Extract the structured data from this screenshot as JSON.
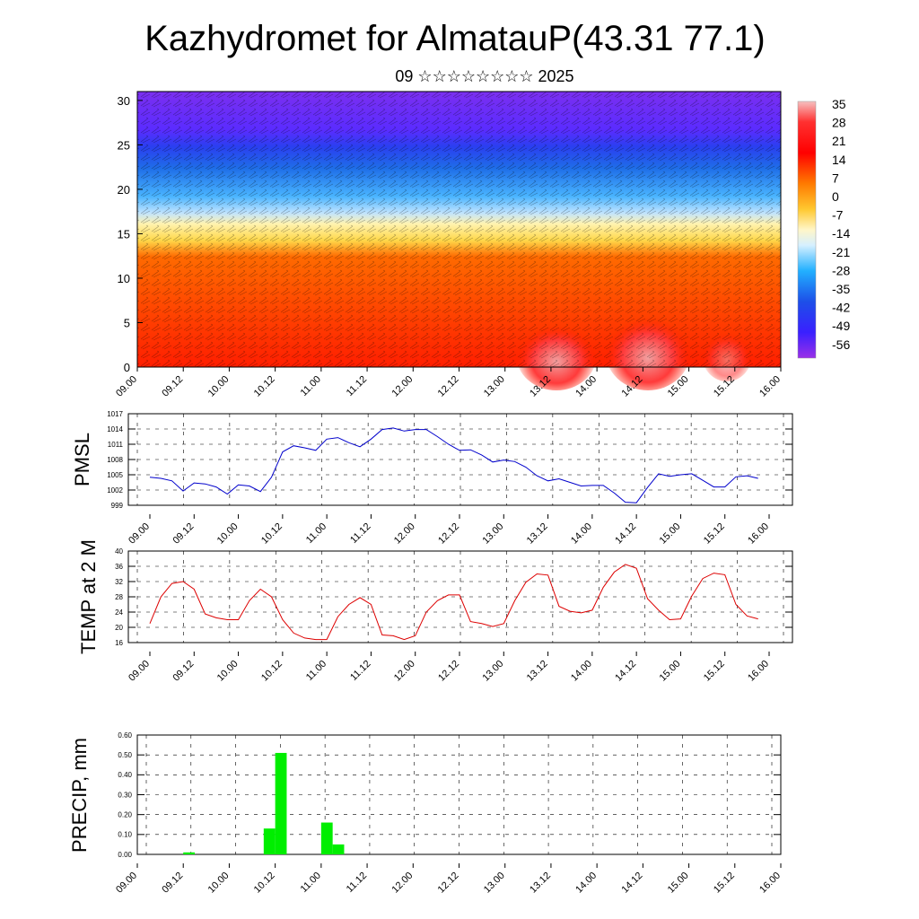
{
  "title": "Kazhydromet for AlmatauP(43.31 77.1)",
  "subtitle": "09 ☆☆☆☆☆☆☆☆ 2025",
  "time_ticks": [
    "09.00",
    "09.12",
    "10.00",
    "10.12",
    "11.00",
    "11.12",
    "12.00",
    "12.12",
    "13.00",
    "13.12",
    "14.00",
    "14.12",
    "15.00",
    "15.12",
    "16.00"
  ],
  "chart_data": [
    {
      "type": "heatmap",
      "name": "temperature-cross-section",
      "ylim": [
        0,
        31
      ],
      "yticks": [
        0,
        5,
        10,
        15,
        20,
        25,
        30
      ],
      "colorbar": {
        "labels": [
          "35",
          "28",
          "21",
          "14",
          "7",
          "0",
          "-7",
          "-14",
          "-21",
          "-28",
          "-35",
          "-42",
          "-49",
          "-56"
        ],
        "colors": [
          "#f4a6a6",
          "#ff0000",
          "#ff6a00",
          "#ffd84a",
          "#fff6c8",
          "#bde6ff",
          "#2ea8ff",
          "#1f4fe0",
          "#4a2bff",
          "#8a2be2"
        ]
      },
      "bands": [
        {
          "from": 0,
          "to": 15,
          "value": "14–35",
          "color": "#ff2a00"
        },
        {
          "from": 15,
          "to": 17,
          "value": "0–7",
          "color": "#ffe27a"
        },
        {
          "from": 17,
          "to": 25,
          "value": "-21 to -7",
          "color": "#5fb7ff"
        },
        {
          "from": 25,
          "to": 31,
          "value": "-56 to -42",
          "color": "#6a2cff"
        }
      ]
    },
    {
      "type": "line",
      "ylabel": "PMSL",
      "ylim": [
        999,
        1017
      ],
      "yticks": [
        999,
        1002,
        1005,
        1008,
        1011,
        1014,
        1017
      ],
      "color": "#0000cc",
      "x": [
        0,
        3,
        6,
        9,
        12,
        15,
        18,
        21,
        24,
        27,
        30,
        33,
        36,
        39,
        42,
        45,
        48,
        51,
        54,
        57,
        60,
        63,
        66,
        69,
        72,
        75,
        78,
        81,
        84,
        87,
        90,
        93,
        96,
        99,
        102,
        105,
        108,
        111,
        114,
        117,
        120,
        123,
        126,
        129,
        132,
        135,
        138,
        141,
        144,
        147,
        150,
        153,
        156,
        159,
        162,
        165
      ],
      "values": [
        1004.5,
        1004.3,
        1003.8,
        1001.8,
        1003.4,
        1003.2,
        1002.6,
        1001.2,
        1003.0,
        1002.8,
        1001.7,
        1004.5,
        1009.5,
        1010.7,
        1010.3,
        1009.8,
        1012.0,
        1012.3,
        1011.3,
        1010.5,
        1012.0,
        1013.9,
        1014.2,
        1013.6,
        1013.9,
        1013.9,
        1012.5,
        1011.0,
        1009.8,
        1009.9,
        1008.9,
        1007.5,
        1007.9,
        1007.6,
        1006.5,
        1004.8,
        1003.8,
        1004.2,
        1003.5,
        1002.8,
        1002.9,
        1002.9,
        1001.4,
        999.6,
        999.5,
        1002.5,
        1005.2,
        1004.7,
        1005.0,
        1005.2,
        1003.9,
        1002.6,
        1002.6,
        1004.6,
        1004.8,
        1004.3
      ]
    },
    {
      "type": "line",
      "ylabel": "TEMP at 2 M",
      "ylim": [
        16,
        40
      ],
      "yticks": [
        16,
        20,
        24,
        28,
        32,
        36,
        40
      ],
      "color": "#dd0000",
      "x": [
        0,
        3,
        6,
        9,
        12,
        15,
        18,
        21,
        24,
        27,
        30,
        33,
        36,
        39,
        42,
        45,
        48,
        51,
        54,
        57,
        60,
        63,
        66,
        69,
        72,
        75,
        78,
        81,
        84,
        87,
        90,
        93,
        96,
        99,
        102,
        105,
        108,
        111,
        114,
        117,
        120,
        123,
        126,
        129,
        132,
        135,
        138,
        141,
        144,
        147,
        150,
        153,
        156,
        159,
        162,
        165
      ],
      "values": [
        21.0,
        28.0,
        31.5,
        32.0,
        30.0,
        23.5,
        22.5,
        22.0,
        22.0,
        27.0,
        30.0,
        28.0,
        22.0,
        18.5,
        17.2,
        16.8,
        16.8,
        22.8,
        26.0,
        27.8,
        26.0,
        18.0,
        17.8,
        16.8,
        17.8,
        24.0,
        27.0,
        28.5,
        28.5,
        21.5,
        21.0,
        20.2,
        21.0,
        27.0,
        31.8,
        34.0,
        33.7,
        25.5,
        24.2,
        23.8,
        24.5,
        30.5,
        34.5,
        36.5,
        35.5,
        27.5,
        24.5,
        22.0,
        22.2,
        28.2,
        32.8,
        34.2,
        33.8,
        26.0,
        23.0,
        22.2
      ]
    },
    {
      "type": "bar",
      "ylabel": "PRECIP, mm",
      "ylim": [
        0,
        0.6
      ],
      "yticks": [
        "0.00",
        "0.10",
        "0.20",
        "0.30",
        "0.40",
        "0.50",
        "0.60"
      ],
      "color": "#00ee00",
      "x": [
        12,
        33,
        36,
        48,
        51
      ],
      "values": [
        0.01,
        0.13,
        0.51,
        0.16,
        0.05
      ]
    }
  ]
}
